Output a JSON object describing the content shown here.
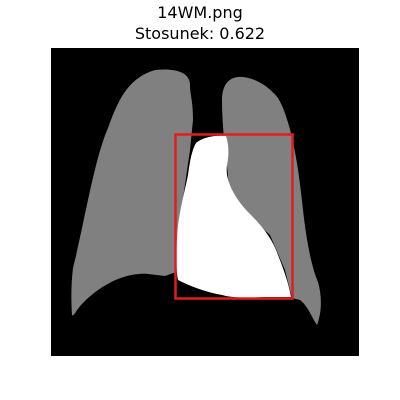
{
  "figure": {
    "filename": "14WM.png",
    "ratio_text": "Stosunek: 0.622"
  },
  "image": {
    "background_color": "#000000",
    "lung_color": "#808080",
    "heart_color": "#ffffff",
    "bbox_color": "#e51c1c"
  }
}
